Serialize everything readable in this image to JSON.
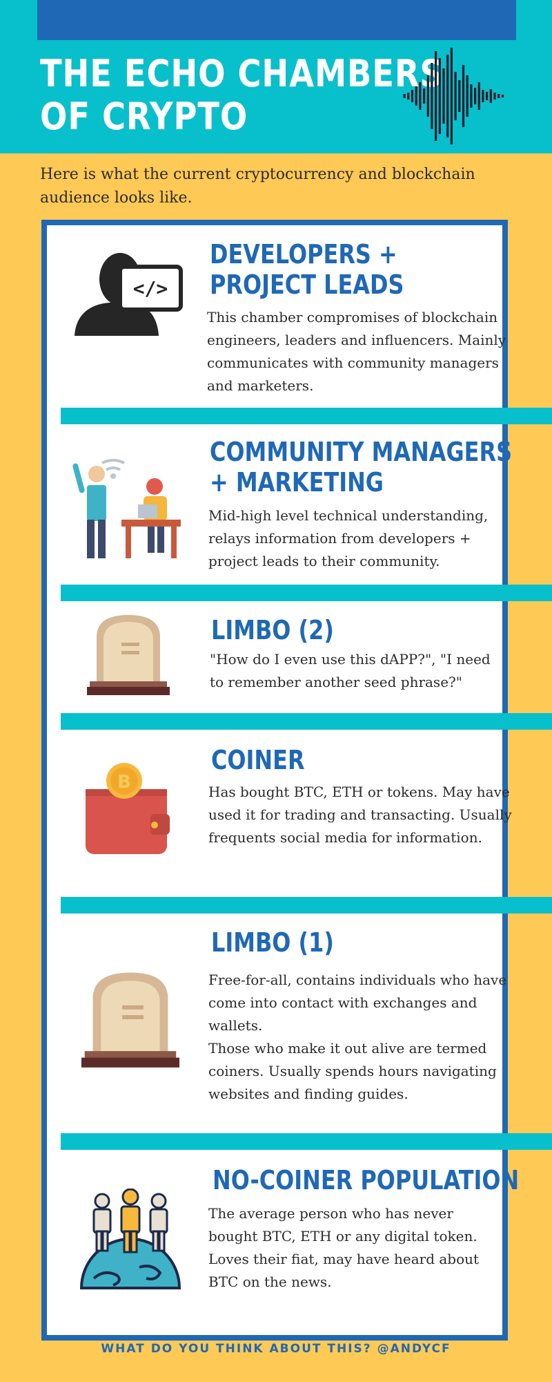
{
  "header": {
    "title_line1": "THE ECHO CHAMBERS",
    "title_line2": "OF CRYPTO"
  },
  "intro": "Here is what the current cryptocurrency and blockchain audience looks like.",
  "sections": [
    {
      "title_line1": "DEVELOPERS +",
      "title_line2": "PROJECT LEADS",
      "body": "This chamber compromises of blockchain engineers, leaders and influencers. Mainly communicates with community managers and marketers.",
      "icon": "developer-icon"
    },
    {
      "title_line1": "COMMUNITY MANAGERS",
      "title_line2": "+ MARKETING",
      "body": "Mid-high level technical understanding, relays information from developers + project leads to their community.",
      "icon": "community-icon"
    },
    {
      "title_line1": "LIMBO (2)",
      "body": "\"How do I even use this dAPP?\", \"I need to remember another seed phrase?\"",
      "icon": "tombstone-icon"
    },
    {
      "title_line1": "COINER",
      "body": "Has bought BTC, ETH or tokens. May have used it for trading and transacting. Usually frequents social media for information.",
      "icon": "wallet-icon"
    },
    {
      "title_line1": "LIMBO (1)",
      "body_line1": "Free-for-all, contains individuals who have come into contact with exchanges and wallets.",
      "body_line2": "Those who make it out alive are termed coiners. Usually spends hours navigating websites and finding guides.",
      "icon": "tombstone-icon"
    },
    {
      "title_line1": "NO-COINER POPULATION",
      "body": "The average person who has never bought BTC, ETH or any digital token. Loves their fiat, may have heard about BTC on the news.",
      "icon": "population-icon"
    }
  ],
  "footer": "WHAT DO YOU THINK ABOUT THIS? @ANDYCF",
  "colors": {
    "background": "#FFC955",
    "header": "#08BFCC",
    "accent_blue": "#1F68B6",
    "stripe": "#08BFCC"
  }
}
